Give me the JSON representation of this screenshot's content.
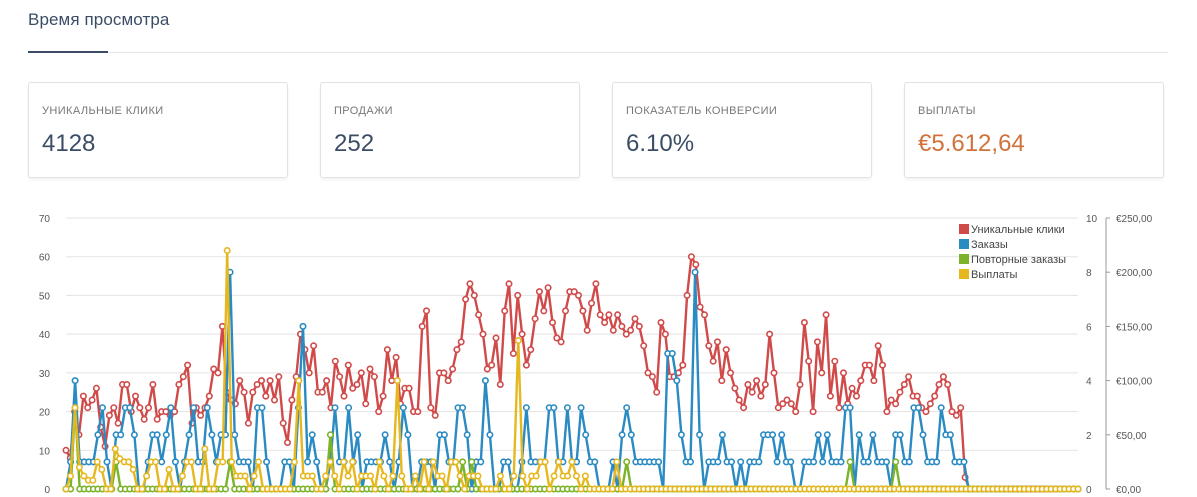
{
  "header": {
    "title": "Время просмотра"
  },
  "stats": [
    {
      "label": "УНИКАЛЬНЫЕ КЛИКИ",
      "value": "4128"
    },
    {
      "label": "ПРОДАЖИ",
      "value": "252"
    },
    {
      "label": "ПОКАЗАТЕЛЬ КОНВЕРСИИ",
      "value": "6.10%"
    },
    {
      "label": "ВЫПЛАТЫ",
      "value": "€5.612,64",
      "color": "#d0723a"
    }
  ],
  "chart_data": {
    "type": "line",
    "grid": true,
    "legend_position": "top-right",
    "ylim_left": [
      0,
      70
    ],
    "yticks_left": [
      "0",
      "10",
      "20",
      "30",
      "40",
      "50",
      "60",
      "70"
    ],
    "ylim_right_count": [
      0,
      10
    ],
    "yticks_right_count": [
      "0",
      "2",
      "4",
      "6",
      "8",
      "10"
    ],
    "ylim_right_money": [
      0,
      250
    ],
    "yticks_right_money": [
      "€0,00",
      "€50,00",
      "€100,00",
      "€150,00",
      "€200,00",
      "€250,00"
    ],
    "series": [
      {
        "name": "Уникальные клики",
        "color": "#d04a4a",
        "axis": "left",
        "values": [
          10,
          8,
          20,
          14,
          24,
          21,
          23,
          26,
          16,
          11,
          19,
          21,
          17,
          27,
          27,
          20,
          24,
          21,
          18,
          21,
          27,
          18,
          20,
          20,
          19,
          20,
          27,
          29,
          32,
          17,
          21,
          19,
          21,
          24,
          31,
          30,
          42,
          25,
          23,
          22,
          28,
          25,
          17,
          25,
          27,
          28,
          24,
          28,
          23,
          29,
          17,
          12,
          23,
          29,
          40,
          36,
          30,
          37,
          25,
          25,
          28,
          21,
          33,
          29,
          24,
          32,
          26,
          27,
          30,
          22,
          31,
          29,
          20,
          24,
          36,
          28,
          34,
          22,
          26,
          26,
          20,
          20,
          42,
          46,
          21,
          19,
          30,
          30,
          28,
          31,
          36,
          38,
          49,
          53,
          50,
          45,
          40,
          31,
          32,
          39,
          27,
          46,
          53,
          35,
          50,
          40,
          32,
          36,
          44,
          51,
          46,
          52,
          43,
          39,
          38,
          46,
          51,
          51,
          50,
          46,
          41,
          48,
          53,
          45,
          43,
          45,
          41,
          45,
          42,
          40,
          41,
          44,
          42,
          37,
          30,
          29,
          25,
          43,
          40,
          29,
          29,
          30,
          32,
          50,
          60,
          58,
          47,
          45,
          37,
          33,
          38,
          28,
          36,
          30,
          26,
          23,
          21,
          27,
          25,
          28,
          24,
          27,
          40,
          30,
          21,
          22,
          23,
          22,
          20,
          27,
          43,
          33,
          20,
          38,
          30,
          45,
          24,
          33,
          21,
          30,
          22,
          26,
          24,
          28,
          32,
          32,
          28,
          37,
          32,
          20,
          23,
          22,
          25,
          27,
          29,
          24,
          24,
          21,
          20,
          22,
          24,
          27,
          29,
          27,
          20,
          19,
          21,
          3,
          0,
          0,
          0,
          0,
          0,
          0,
          0,
          0,
          0,
          0,
          0,
          0,
          0,
          0,
          0,
          0,
          0,
          0,
          0,
          0,
          0,
          0,
          0,
          0,
          0,
          0
        ]
      },
      {
        "name": "Заказы",
        "color": "#2a8ac2",
        "axis": "right_count",
        "values": [
          0,
          1,
          4,
          1,
          1,
          1,
          1,
          2,
          3,
          1,
          0,
          2,
          2,
          3,
          3,
          2,
          0,
          0,
          1,
          2,
          2,
          1,
          2,
          3,
          1,
          0,
          1,
          2,
          3,
          1,
          1,
          3,
          2,
          1,
          2,
          2,
          8,
          2,
          1,
          1,
          1,
          0,
          3,
          3,
          1,
          0,
          0,
          0,
          1,
          1,
          0,
          3,
          6,
          1,
          2,
          1,
          0,
          0,
          1,
          3,
          1,
          1,
          3,
          1,
          2,
          0,
          1,
          1,
          1,
          1,
          2,
          1,
          0,
          1,
          3,
          2,
          0,
          0,
          1,
          1,
          1,
          0,
          2,
          2,
          1,
          1,
          3,
          3,
          2,
          0,
          1,
          1,
          4,
          2,
          0,
          0,
          1,
          1,
          0,
          0,
          1,
          3,
          1,
          1,
          1,
          1,
          3,
          3,
          1,
          1,
          3,
          1,
          1,
          3,
          2,
          1,
          1,
          0,
          0,
          0,
          1,
          0,
          2,
          3,
          2,
          1,
          1,
          1,
          1,
          1,
          1,
          0,
          5,
          5,
          4,
          2,
          1,
          1,
          8,
          2,
          0,
          1,
          1,
          1,
          2,
          1,
          1,
          0,
          1,
          0,
          1,
          1,
          1,
          2,
          2,
          2,
          1,
          2,
          1,
          1,
          0,
          0,
          1,
          1,
          1,
          2,
          1,
          2,
          1,
          1,
          1,
          3,
          3,
          0,
          2,
          1,
          1,
          2,
          1,
          1,
          1,
          0,
          2,
          2,
          1,
          1,
          3,
          3,
          2,
          1,
          1,
          1,
          3,
          2,
          2,
          1,
          1,
          1,
          0,
          0,
          0,
          0,
          0,
          0,
          0,
          0,
          0,
          0,
          0,
          0,
          0,
          0,
          0,
          0,
          0,
          0,
          0,
          0,
          0,
          0,
          0,
          0,
          0
        ]
      },
      {
        "name": "Повторные заказы",
        "color": "#7cb32a",
        "axis": "right_count",
        "values": [
          0,
          0,
          3,
          0,
          0,
          0,
          0,
          0,
          0,
          0,
          0,
          1,
          0,
          0,
          0,
          0,
          0,
          0,
          0,
          0,
          0,
          0,
          0,
          0,
          0,
          0,
          0,
          0,
          0,
          0,
          0,
          0,
          0,
          0,
          0,
          0,
          1,
          0,
          0,
          0,
          0,
          0,
          0,
          0,
          0,
          0,
          0,
          0,
          0,
          0,
          0,
          0,
          0,
          0,
          0,
          0,
          0,
          0,
          2,
          0,
          0,
          0,
          0,
          0,
          0,
          0,
          0,
          0,
          0,
          0,
          0,
          0,
          0,
          0,
          0,
          0,
          0,
          0,
          0,
          0,
          0,
          0,
          0,
          0,
          0,
          0,
          0,
          1,
          0,
          1,
          0,
          0,
          0,
          0,
          0,
          0,
          0,
          0,
          0,
          0,
          0,
          0,
          0,
          0,
          0,
          0,
          0,
          0,
          0,
          0,
          0,
          0,
          0,
          0,
          0,
          0,
          0,
          0,
          0,
          0,
          0,
          0,
          0,
          1,
          0,
          0,
          0,
          0,
          0,
          0,
          0,
          0,
          0,
          0,
          0,
          0,
          0,
          0,
          0,
          0,
          0,
          0,
          0,
          0,
          0,
          0,
          0,
          0,
          0,
          0,
          0,
          0,
          0,
          0,
          0,
          0,
          0,
          0,
          0,
          0,
          0,
          0,
          0,
          0,
          0,
          0,
          0,
          0,
          0,
          0,
          0,
          0,
          1,
          0,
          0,
          0,
          0,
          0,
          0,
          0,
          0,
          0,
          1,
          0,
          0,
          0,
          0,
          0,
          0,
          0,
          0,
          0,
          0,
          0,
          0,
          0,
          0,
          0,
          0,
          0,
          0,
          0,
          0,
          0,
          0,
          0,
          0,
          0,
          0,
          0,
          0,
          0,
          0,
          0,
          0,
          0,
          0,
          0,
          0,
          0,
          0,
          0,
          0
        ]
      },
      {
        "name": "Выплаты",
        "color": "#e6b820",
        "axis": "right_money",
        "values": [
          0,
          12,
          75,
          20,
          12,
          8,
          8,
          25,
          18,
          0,
          0,
          37,
          28,
          25,
          25,
          18,
          0,
          0,
          12,
          25,
          25,
          0,
          0,
          18,
          0,
          0,
          12,
          25,
          25,
          0,
          0,
          37,
          0,
          0,
          25,
          25,
          220,
          25,
          12,
          12,
          12,
          0,
          12,
          25,
          0,
          0,
          0,
          0,
          0,
          0,
          0,
          25,
          100,
          12,
          12,
          12,
          0,
          0,
          12,
          25,
          12,
          0,
          25,
          12,
          25,
          0,
          12,
          12,
          12,
          0,
          25,
          12,
          0,
          12,
          100,
          12,
          0,
          0,
          12,
          0,
          25,
          0,
          25,
          12,
          12,
          0,
          25,
          25,
          12,
          0,
          12,
          12,
          12,
          0,
          0,
          0,
          0,
          12,
          0,
          0,
          12,
          137,
          12,
          0,
          12,
          12,
          25,
          25,
          0,
          12,
          25,
          12,
          12,
          25,
          12,
          0,
          12,
          0,
          0,
          0,
          0,
          0,
          0,
          25,
          0,
          0,
          0,
          0,
          0,
          0,
          0,
          0,
          0,
          0,
          0,
          0,
          0,
          0,
          0,
          0,
          0,
          0,
          0,
          0,
          0,
          0,
          0,
          0,
          0,
          0,
          0,
          0,
          0,
          0,
          0,
          0,
          0,
          0,
          0,
          0,
          0,
          0,
          0,
          0,
          0,
          0,
          0,
          0,
          0,
          0,
          0,
          0,
          0,
          0,
          0,
          0,
          0,
          0,
          0,
          0,
          0,
          0,
          0,
          0,
          0,
          0,
          0,
          0,
          0,
          0,
          0,
          0,
          0,
          0,
          0,
          0,
          0,
          0,
          0,
          0,
          0,
          0,
          0,
          0,
          0,
          0,
          0,
          0,
          0,
          0,
          0,
          0,
          0,
          0,
          0,
          0,
          0,
          0,
          0,
          0,
          0,
          0,
          0,
          0,
          0,
          0,
          0
        ]
      }
    ]
  }
}
